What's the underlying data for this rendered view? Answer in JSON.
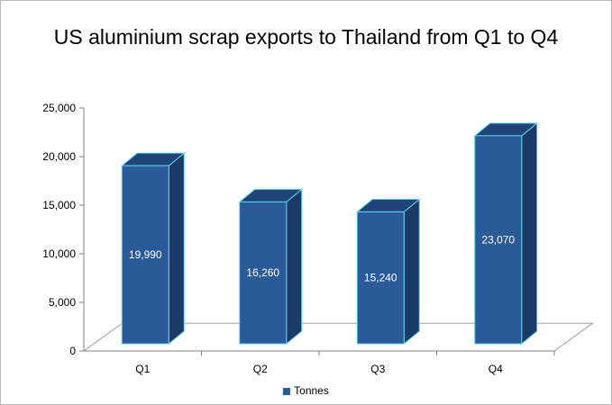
{
  "chart_data": {
    "type": "bar",
    "title": "US aluminium scrap exports to Thailand from Q1 to Q4",
    "categories": [
      "Q1",
      "Q2",
      "Q3",
      "Q4"
    ],
    "series": [
      {
        "name": "Tonnes",
        "values": [
          19990,
          16260,
          15240,
          23070
        ]
      }
    ],
    "data_labels": [
      "19,990",
      "16,260",
      "15,240",
      "23,070"
    ],
    "y_ticks": [
      "0",
      "5,000",
      "10,000",
      "15,000",
      "20,000",
      "25,000"
    ],
    "ylim": [
      0,
      25000
    ],
    "xlabel": "",
    "ylabel": "",
    "grid": false,
    "legend_position": "bottom",
    "three_d": true,
    "colors": {
      "bar_front": "#2b5a99",
      "bar_top": "#1f4478",
      "bar_side": "#1b3a66",
      "bar_edge": "#5fd3f0",
      "floor_edge": "#a0a0a0",
      "axis": "#808080"
    }
  }
}
